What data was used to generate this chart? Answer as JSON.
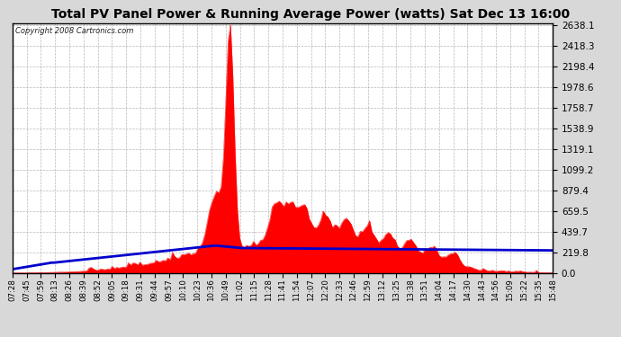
{
  "title": "Total PV Panel Power & Running Average Power (watts) Sat Dec 13 16:00",
  "copyright": "Copyright 2008 Cartronics.com",
  "yticks": [
    0.0,
    219.8,
    439.7,
    659.5,
    879.4,
    1099.2,
    1319.1,
    1538.9,
    1758.7,
    1978.6,
    2198.4,
    2418.3,
    2638.1
  ],
  "xtick_labels": [
    "07:28",
    "07:45",
    "07:59",
    "08:13",
    "08:26",
    "08:39",
    "08:52",
    "09:05",
    "09:18",
    "09:31",
    "09:44",
    "09:57",
    "10:10",
    "10:23",
    "10:36",
    "10:49",
    "11:02",
    "11:15",
    "11:28",
    "11:41",
    "11:54",
    "12:07",
    "12:20",
    "12:33",
    "12:46",
    "12:59",
    "13:12",
    "13:25",
    "13:38",
    "13:51",
    "14:04",
    "14:17",
    "14:30",
    "14:43",
    "14:56",
    "15:09",
    "15:22",
    "15:35",
    "15:48"
  ],
  "ymax": 2638.1,
  "bg_color": "#d8d8d8",
  "plot_bg": "#ffffff",
  "grid_color": "#b0b0b0",
  "fill_color": "#ff0000",
  "line_color": "#0000cc",
  "title_color": "#000000",
  "border_color": "#000000"
}
